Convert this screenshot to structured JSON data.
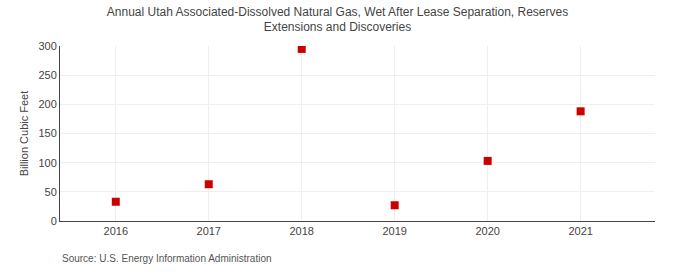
{
  "chart_data": {
    "type": "scatter",
    "title": "Annual Utah Associated-Dissolved Natural Gas, Wet After Lease Separation, Reserves\nExtensions and Discoveries",
    "x": [
      2016,
      2017,
      2018,
      2019,
      2020,
      2021
    ],
    "values": [
      33,
      63,
      295,
      27,
      103,
      188
    ],
    "ylabel": "Billion Cubic Feet",
    "xlim": [
      2015.4,
      2021.8
    ],
    "xticks": [
      2016,
      2017,
      2018,
      2019,
      2020,
      2021
    ],
    "ylim": [
      0,
      300
    ],
    "yticks": [
      0,
      50,
      100,
      150,
      200,
      250,
      300
    ],
    "color": "#cc0000",
    "marker": "square",
    "grid": true,
    "annotations": [
      "Source: U.S. Energy Information Administration"
    ]
  }
}
